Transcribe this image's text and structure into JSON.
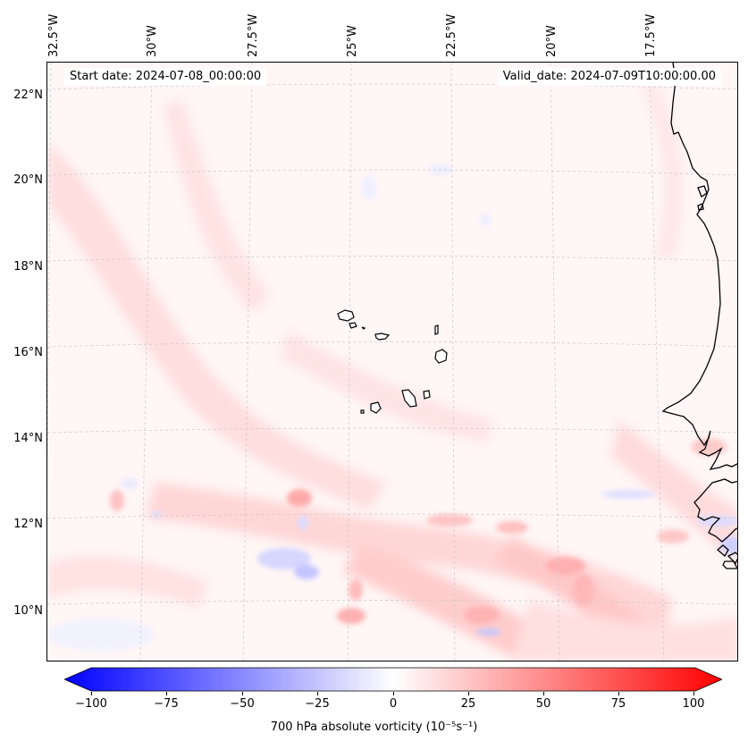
{
  "map": {
    "start_date": "Start date: 2024-07-08_00:00:00",
    "valid_date": "Valid_date: 2024-07-09T10:00:00.00",
    "longitude_labels": [
      "32.5°W",
      "30°W",
      "27.5°W",
      "25°W",
      "22.5°W",
      "20°W",
      "17.5°W"
    ],
    "latitude_labels": [
      "22°N",
      "20°N",
      "18°N",
      "16°N",
      "14°N",
      "12°N",
      "10°N"
    ],
    "features": [
      "Cabo Verde islands",
      "West African coastline"
    ]
  },
  "colorbar": {
    "label": "700 hPa absolute vorticity (10⁻⁵s⁻¹)",
    "ticks": [
      "−100",
      "−75",
      "−50",
      "−25",
      "0",
      "25",
      "50",
      "75",
      "100"
    ],
    "min": -100,
    "max": 100,
    "colors": {
      "negative": "#0000ff",
      "zero": "#ffffff",
      "positive": "#ff0000"
    }
  }
}
